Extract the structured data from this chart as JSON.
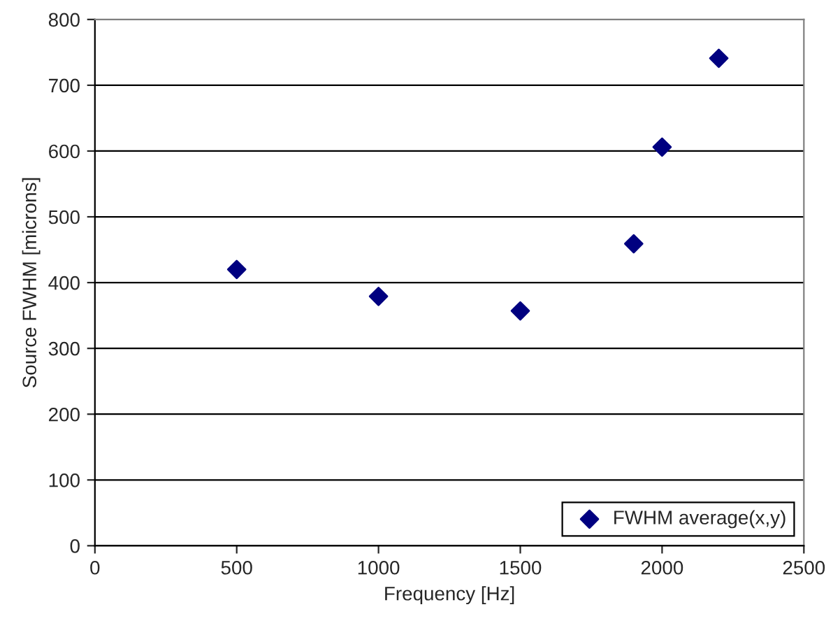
{
  "chart_data": {
    "type": "scatter",
    "xlabel": "Frequency [Hz]",
    "ylabel": "Source FWHM [microns]",
    "series": [
      {
        "name": "FWHM average(x,y)",
        "color": "#000080",
        "x": [
          500,
          1000,
          1500,
          1900,
          2000,
          2200
        ],
        "values": [
          420,
          379,
          357,
          459,
          606,
          741
        ]
      }
    ],
    "xlim": [
      0,
      2500
    ],
    "xticks": [
      0,
      500,
      1000,
      1500,
      2000,
      2500
    ],
    "ylim": [
      0,
      800
    ],
    "yticks": [
      0,
      100,
      200,
      300,
      400,
      500,
      600,
      700,
      800
    ],
    "grid": "y",
    "legend": "bottom right",
    "marker": "diamond"
  }
}
